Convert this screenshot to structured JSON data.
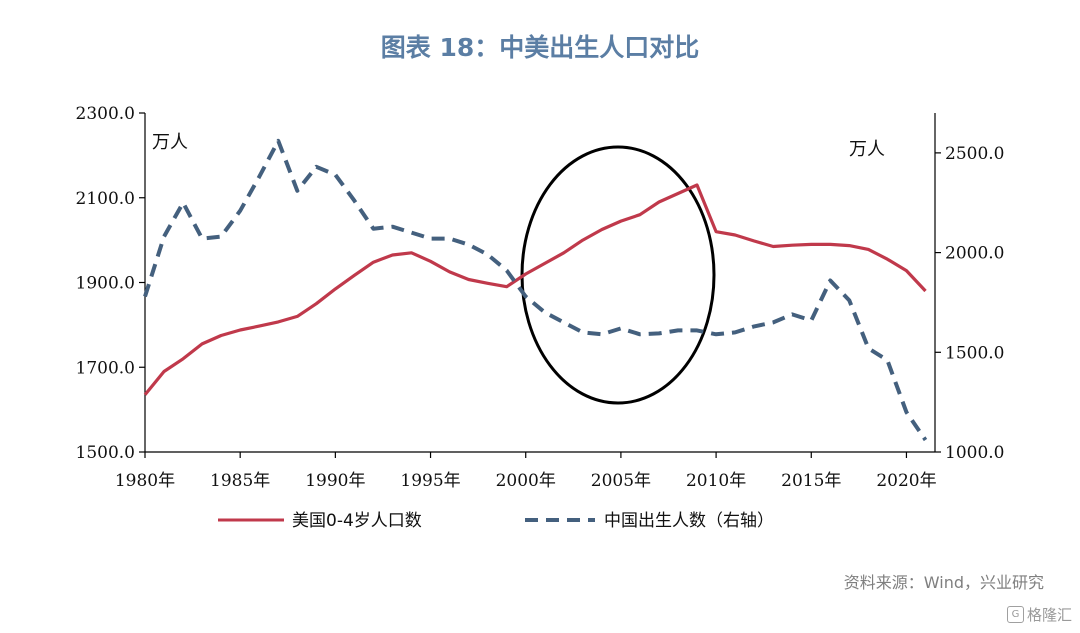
{
  "title": "图表 18：中美出生人口对比",
  "source": "资料来源：Wind，兴业研究",
  "watermark": "格隆汇",
  "chart_data": {
    "type": "line",
    "left_unit": "万人",
    "right_unit": "万人",
    "x_ticks": [
      "1980年",
      "1985年",
      "1990年",
      "1995年",
      "2000年",
      "2005年",
      "2010年",
      "2015年",
      "2020年"
    ],
    "xlim": [
      1980,
      2021.5
    ],
    "y_left": {
      "ylim": [
        1500,
        2300
      ],
      "ticks": [
        "1500.0",
        "1700.0",
        "1900.0",
        "2100.0",
        "2300.0"
      ]
    },
    "y_right": {
      "ylim": [
        1000,
        2700
      ],
      "ticks": [
        "1000.0",
        "1500.0",
        "2000.0",
        "2500.0"
      ]
    },
    "series": [
      {
        "name": "美国0-4岁人口数",
        "axis": "left",
        "color": "#c0394b",
        "style": "solid",
        "x": [
          1980,
          1981,
          1982,
          1983,
          1984,
          1985,
          1986,
          1987,
          1988,
          1989,
          1990,
          1991,
          1992,
          1993,
          1994,
          1995,
          1996,
          1997,
          1998,
          1999,
          2000,
          2001,
          2002,
          2003,
          2004,
          2005,
          2006,
          2007,
          2008,
          2009,
          2010,
          2011,
          2012,
          2013,
          2014,
          2015,
          2016,
          2017,
          2018,
          2019,
          2020,
          2021
        ],
        "values": [
          1635,
          1690,
          1720,
          1755,
          1775,
          1788,
          1797,
          1807,
          1820,
          1850,
          1885,
          1917,
          1948,
          1965,
          1970,
          1950,
          1925,
          1907,
          1898,
          1890,
          1920,
          1945,
          1970,
          2000,
          2025,
          2045,
          2060,
          2090,
          2110,
          2130,
          2020,
          2012,
          1998,
          1985,
          1988,
          1990,
          1990,
          1987,
          1978,
          1955,
          1928,
          1880
        ]
      },
      {
        "name": "中国出生人数（右轴）",
        "axis": "right",
        "color": "#44607e",
        "style": "dashed",
        "x": [
          1980,
          1981,
          1982,
          1983,
          1984,
          1985,
          1986,
          1987,
          1988,
          1989,
          1990,
          1991,
          1992,
          1993,
          1994,
          1995,
          1996,
          1997,
          1998,
          1999,
          2000,
          2001,
          2002,
          2003,
          2004,
          2005,
          2006,
          2007,
          2008,
          2009,
          2010,
          2011,
          2012,
          2013,
          2014,
          2015,
          2016,
          2017,
          2018,
          2019,
          2020,
          2021
        ],
        "values": [
          1780,
          2080,
          2250,
          2070,
          2080,
          2210,
          2380,
          2560,
          2310,
          2430,
          2390,
          2260,
          2120,
          2130,
          2100,
          2070,
          2070,
          2040,
          1990,
          1910,
          1780,
          1700,
          1650,
          1600,
          1590,
          1620,
          1590,
          1595,
          1610,
          1610,
          1590,
          1600,
          1630,
          1650,
          1690,
          1660,
          1860,
          1760,
          1520,
          1460,
          1200,
          1060
        ]
      }
    ]
  }
}
